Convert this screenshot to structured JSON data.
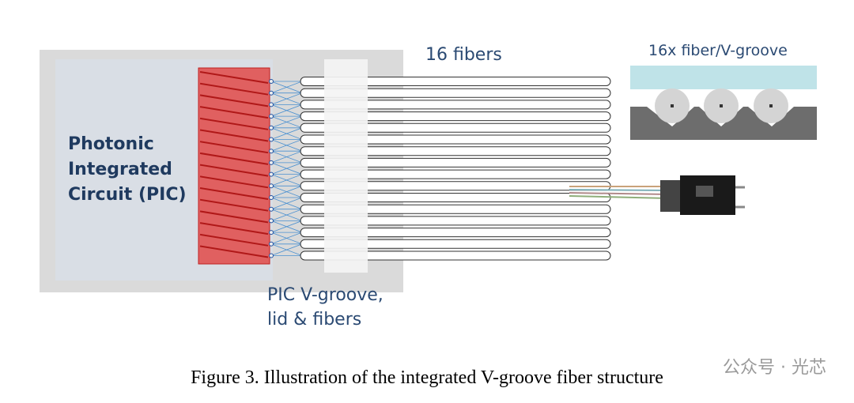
{
  "pic_label": {
    "lines": [
      "Photonic",
      "Integrated",
      "Circuit (PIC)"
    ]
  },
  "fiber_label": "16 fibers",
  "inset_label": "16x fiber/V-groove",
  "vgroove_label": {
    "lines": [
      "PIC V-groove,",
      "lid & fibers"
    ]
  },
  "caption": "Figure 3. Illustration of the integrated V-groove fiber structure",
  "watermark": "公众号 · 光芯"
}
